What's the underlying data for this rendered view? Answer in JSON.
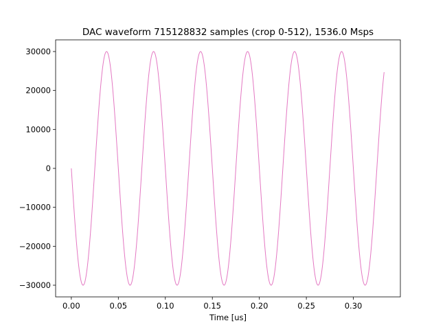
{
  "chart_data": {
    "type": "line",
    "title": "DAC waveform 715128832 samples (crop 0-512), 1536.0 Msps",
    "xlabel": "Time [us]",
    "ylabel": "",
    "xlim": [
      -0.0167,
      0.35
    ],
    "ylim": [
      -33000,
      33000
    ],
    "x_ticks": [
      0.0,
      0.05,
      0.1,
      0.15,
      0.2,
      0.25,
      0.3
    ],
    "x_tick_labels": [
      "0.00",
      "0.05",
      "0.10",
      "0.15",
      "0.20",
      "0.25",
      "0.30"
    ],
    "y_ticks": [
      -30000,
      -20000,
      -10000,
      0,
      10000,
      20000,
      30000
    ],
    "y_tick_labels": [
      "−30000",
      "−20000",
      "−10000",
      "0",
      "10000",
      "20000",
      "30000"
    ],
    "grid": false,
    "legend": "none",
    "series": [
      {
        "color": "#e377c2",
        "function": "sine",
        "amplitude": 30000,
        "period_us": 0.05,
        "phase": "starts at 0 going negative",
        "x_start": 0.0,
        "x_end": 0.3327,
        "y_end": 24600
      }
    ]
  }
}
